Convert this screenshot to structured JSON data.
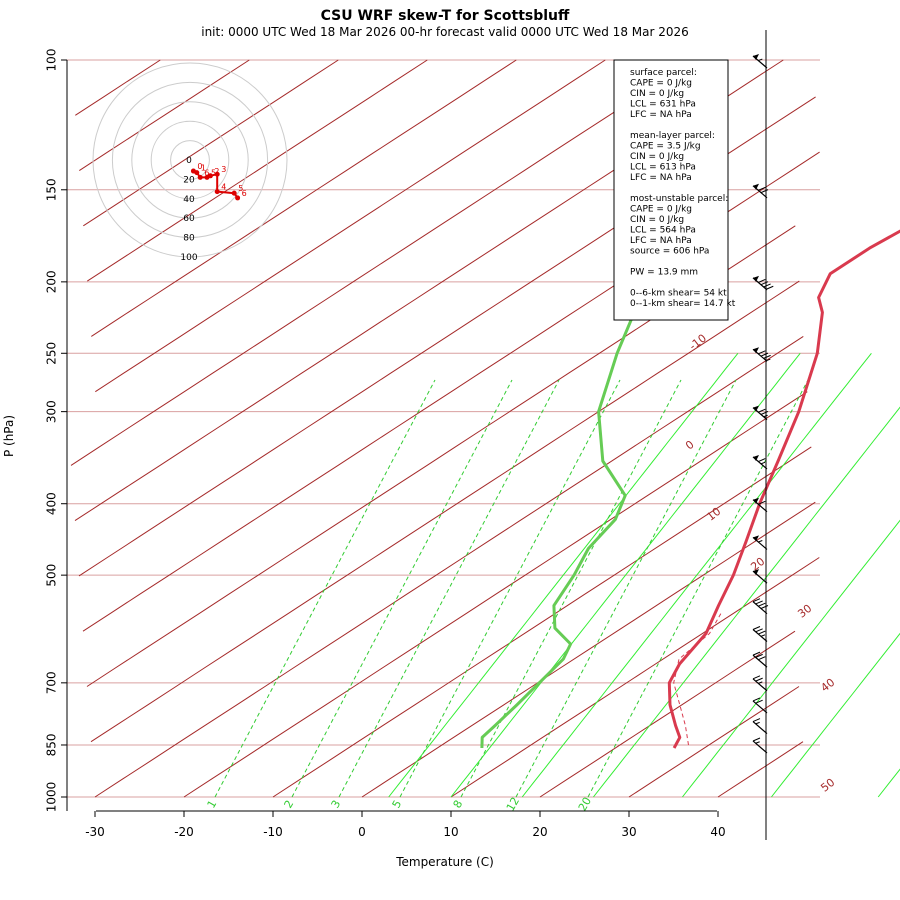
{
  "chart_data": {
    "type": "line",
    "title": "CSU WRF skew-T for Scottsbluff",
    "subtitle": "init: 0000 UTC Wed 18 Mar 2026     00-hr forecast valid 0000 UTC Wed 18 Mar 2026",
    "xlabel": "Temperature (C)",
    "ylabel": "P (hPa)",
    "xlim": [
      -33,
      45
    ],
    "ylim": [
      1000,
      100
    ],
    "y_log_scale": true,
    "x_ticks": [
      "-30",
      "-20",
      "-10",
      "0",
      "10",
      "20",
      "30",
      "40"
    ],
    "y_ticks": [
      "100",
      "150",
      "200",
      "250",
      "300",
      "400",
      "500",
      "700",
      "850",
      "1000"
    ],
    "isotherm_labels": [
      "-10",
      "0",
      "10",
      "20",
      "30",
      "40",
      "50"
    ],
    "mixing_ratio_labels": [
      "1",
      "2",
      "3",
      "5",
      "8",
      "12",
      "20"
    ],
    "series": [
      {
        "role": "temperature",
        "color": "#d93a4e",
        "points": [
          {
            "p": 858,
            "t": 26.6
          },
          {
            "p": 830,
            "t": 25.4
          },
          {
            "p": 800,
            "t": 22.9
          },
          {
            "p": 750,
            "t": 18.7
          },
          {
            "p": 700,
            "t": 14.8
          },
          {
            "p": 660,
            "t": 12.7
          },
          {
            "p": 600,
            "t": 10.4
          },
          {
            "p": 550,
            "t": 7.0
          },
          {
            "p": 500,
            "t": 3.4
          },
          {
            "p": 450,
            "t": -1.0
          },
          {
            "p": 400,
            "t": -6.0
          },
          {
            "p": 350,
            "t": -11.3
          },
          {
            "p": 300,
            "t": -17.5
          },
          {
            "p": 250,
            "t": -25.5
          },
          {
            "p": 220,
            "t": -32.0
          },
          {
            "p": 210,
            "t": -35.0
          },
          {
            "p": 195,
            "t": -37.8
          },
          {
            "p": 180,
            "t": -37.8
          },
          {
            "p": 165,
            "t": -37.0
          },
          {
            "p": 150,
            "t": -37.5
          },
          {
            "p": 130,
            "t": -42.5
          },
          {
            "p": 110,
            "t": -48.0
          }
        ]
      },
      {
        "role": "dewpoint",
        "color": "#66cc55",
        "points": [
          {
            "p": 858,
            "t": 5.0
          },
          {
            "p": 830,
            "t": 3.2
          },
          {
            "p": 800,
            "t": 2.6
          },
          {
            "p": 750,
            "t": 1.5
          },
          {
            "p": 700,
            "t": 0.2
          },
          {
            "p": 650,
            "t": -1.2
          },
          {
            "p": 620,
            "t": -3.0
          },
          {
            "p": 590,
            "t": -7.5
          },
          {
            "p": 550,
            "t": -11.5
          },
          {
            "p": 500,
            "t": -14.5
          },
          {
            "p": 460,
            "t": -17.5
          },
          {
            "p": 420,
            "t": -19.5
          },
          {
            "p": 390,
            "t": -22.5
          },
          {
            "p": 350,
            "t": -31.0
          },
          {
            "p": 300,
            "t": -40.0
          },
          {
            "p": 250,
            "t": -48.0
          },
          {
            "p": 210,
            "t": -55.0
          },
          {
            "p": 180,
            "t": -59.0
          }
        ]
      },
      {
        "role": "parcel",
        "color": "#d93a4e",
        "dashed": true,
        "points": [
          {
            "p": 850,
            "t": 27.7
          },
          {
            "p": 800,
            "t": 24.0
          },
          {
            "p": 750,
            "t": 19.8
          },
          {
            "p": 700,
            "t": 15.3
          },
          {
            "p": 650,
            "t": 11.8
          },
          {
            "p": 600,
            "t": 10.8
          },
          {
            "p": 560,
            "t": 8.4
          }
        ]
      }
    ],
    "hodograph": {
      "ring_labels": [
        "0",
        "20",
        "40",
        "60",
        "80",
        "100"
      ],
      "points": [
        {
          "label": "0",
          "u": 1,
          "v": -7
        },
        {
          "label": "1",
          "u": 2,
          "v": -8
        },
        {
          "label": "6",
          "u": 3,
          "v": -11
        },
        {
          "label": "5",
          "u": 5,
          "v": -11
        },
        {
          "label": "2",
          "u": 6,
          "v": -10
        },
        {
          "label": "3",
          "u": 8,
          "v": -9
        },
        {
          "label": "4",
          "u": 8,
          "v": -20
        },
        {
          "label": "5",
          "u": 13,
          "v": -21
        },
        {
          "label": "6",
          "u": 14,
          "v": -24
        }
      ]
    },
    "info_box": [
      "surface parcel:",
      "CAPE = 0 J/kg",
      "CIN = 0 J/kg",
      "LCL = 631 hPa",
      "LFC = NA hPa",
      "",
      "mean-layer parcel:",
      "CAPE = 3.5 J/kg",
      "CIN = 0 J/kg",
      "LCL = 613 hPa",
      "LFC = NA hPa",
      "",
      "most-unstable parcel:",
      "CAPE = 0 J/kg",
      "CIN = 0 J/kg",
      "LCL = 564 hPa",
      "LFC = NA hPa",
      "source = 606 hPa",
      "",
      "PW =  13.9 mm",
      "",
      "0--6-km shear= 54 kt",
      "0--1-km shear= 14.7 kt"
    ],
    "wind_barbs": [
      {
        "p": 850,
        "speed_kt": 15
      },
      {
        "p": 800,
        "speed_kt": 15
      },
      {
        "p": 750,
        "speed_kt": 20
      },
      {
        "p": 700,
        "speed_kt": 25
      },
      {
        "p": 650,
        "speed_kt": 30
      },
      {
        "p": 600,
        "speed_kt": 35
      },
      {
        "p": 550,
        "speed_kt": 40
      },
      {
        "p": 500,
        "speed_kt": 50
      },
      {
        "p": 450,
        "speed_kt": 55
      },
      {
        "p": 400,
        "speed_kt": 60
      },
      {
        "p": 350,
        "speed_kt": 65
      },
      {
        "p": 300,
        "speed_kt": 75
      },
      {
        "p": 250,
        "speed_kt": 85
      },
      {
        "p": 200,
        "speed_kt": 90
      },
      {
        "p": 150,
        "speed_kt": 70
      },
      {
        "p": 100,
        "speed_kt": 55
      }
    ],
    "colors": {
      "isotherm": "#a52a2a",
      "isobar": "#d9a0a0",
      "mixing_ratio": "#33cc33",
      "moist_adiabat": "#33ee33",
      "hodograph_trace": "#dd0000",
      "hodograph_rings": "#cccccc"
    }
  }
}
